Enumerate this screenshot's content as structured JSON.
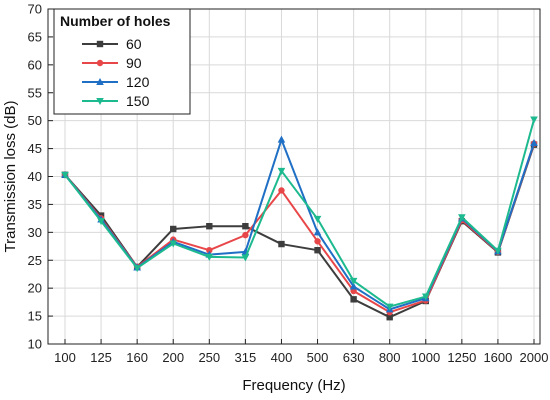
{
  "chart_data": {
    "type": "line",
    "title": "",
    "xlabel": "Frequency (Hz)",
    "ylabel": "Transmission loss (dB)",
    "categories": [
      "100",
      "125",
      "160",
      "200",
      "250",
      "315",
      "400",
      "500",
      "630",
      "800",
      "1000",
      "1250",
      "1600",
      "2000"
    ],
    "ylim": [
      10,
      70
    ],
    "yticks": [
      10,
      15,
      20,
      25,
      30,
      35,
      40,
      45,
      50,
      55,
      60,
      65,
      70
    ],
    "grid": true,
    "legend": {
      "title": "Number of holes",
      "position": "top-left"
    },
    "series": [
      {
        "name": "60",
        "color": "#3d3d3d",
        "marker": "square",
        "values": [
          40.3,
          33.0,
          23.8,
          30.6,
          31.1,
          31.1,
          27.9,
          26.8,
          18.0,
          14.8,
          17.7,
          32.0,
          26.4,
          45.7
        ]
      },
      {
        "name": "90",
        "color": "#e8474a",
        "marker": "circle",
        "values": [
          40.3,
          32.5,
          23.8,
          28.7,
          26.8,
          29.5,
          37.5,
          28.4,
          19.5,
          15.7,
          17.8,
          32.2,
          26.5,
          45.9
        ]
      },
      {
        "name": "120",
        "color": "#1f6fc5",
        "marker": "triangle",
        "values": [
          40.3,
          32.3,
          23.7,
          28.3,
          26.0,
          26.5,
          46.6,
          30.0,
          20.3,
          16.2,
          18.2,
          32.5,
          26.6,
          46.0
        ]
      },
      {
        "name": "150",
        "color": "#1db98f",
        "marker": "tri-down",
        "values": [
          40.3,
          32.0,
          23.6,
          28.0,
          25.6,
          25.5,
          41.0,
          32.4,
          21.3,
          16.7,
          18.5,
          32.7,
          26.7,
          50.2
        ]
      }
    ]
  }
}
